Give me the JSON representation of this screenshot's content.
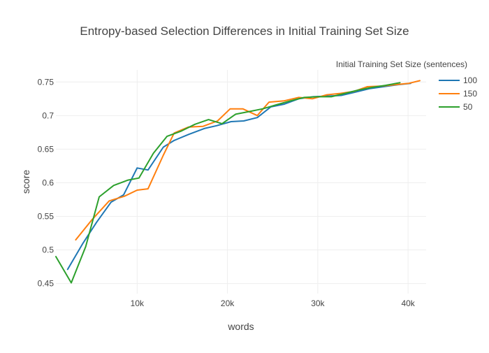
{
  "chart_data": {
    "type": "line",
    "title": "Entropy-based Selection Differences in Initial Training Set Size",
    "xlabel": "words",
    "ylabel": "score",
    "xlim": [
      1000,
      42000
    ],
    "ylim": [
      0.435,
      0.768
    ],
    "x_ticks": [
      10000,
      20000,
      30000,
      40000
    ],
    "x_tick_labels": [
      "10k",
      "20k",
      "30k",
      "40k"
    ],
    "y_ticks": [
      0.45,
      0.5,
      0.55,
      0.6,
      0.65,
      0.7,
      0.75
    ],
    "y_tick_labels": [
      "0.45",
      "0.5",
      "0.55",
      "0.6",
      "0.65",
      "0.7",
      "0.75"
    ],
    "grid": true,
    "legend": {
      "title": "Initial Training Set Size (sentences)",
      "position": "top-right"
    },
    "series": [
      {
        "name": "100",
        "color": "#1f77b4",
        "x": [
          2300,
          4000,
          5500,
          7100,
          8500,
          10000,
          11200,
          12900,
          14100,
          15700,
          17500,
          18800,
          20400,
          21800,
          23300,
          24800,
          26300,
          27900,
          29500,
          31100,
          32600,
          34200,
          35700,
          37300,
          38900,
          40300
        ],
        "y": [
          0.471,
          0.51,
          0.541,
          0.571,
          0.582,
          0.622,
          0.619,
          0.653,
          0.663,
          0.672,
          0.681,
          0.685,
          0.691,
          0.692,
          0.697,
          0.713,
          0.717,
          0.725,
          0.728,
          0.729,
          0.73,
          0.735,
          0.74,
          0.743,
          0.746,
          0.748
        ]
      },
      {
        "name": "150",
        "color": "#ff7f0e",
        "x": [
          3200,
          5000,
          6900,
          8600,
          10000,
          11200,
          12900,
          14100,
          15700,
          17300,
          18900,
          20300,
          21700,
          23300,
          24600,
          26300,
          27900,
          29400,
          31000,
          32500,
          34000,
          35500,
          37100,
          38600,
          40100,
          41300
        ],
        "y": [
          0.515,
          0.545,
          0.573,
          0.58,
          0.589,
          0.591,
          0.641,
          0.674,
          0.683,
          0.684,
          0.692,
          0.71,
          0.71,
          0.7,
          0.72,
          0.722,
          0.727,
          0.725,
          0.731,
          0.733,
          0.736,
          0.743,
          0.744,
          0.746,
          0.748,
          0.752
        ]
      },
      {
        "name": "50",
        "color": "#2ca02c",
        "x": [
          1000,
          2700,
          4300,
          5800,
          7400,
          9000,
          10200,
          11800,
          13300,
          14900,
          16400,
          17900,
          19400,
          20900,
          22400,
          23900,
          25400,
          27000,
          28500,
          30000,
          31500,
          33000,
          34500,
          36000,
          37500,
          39100
        ],
        "y": [
          0.49,
          0.451,
          0.505,
          0.579,
          0.596,
          0.604,
          0.607,
          0.644,
          0.669,
          0.677,
          0.687,
          0.694,
          0.688,
          0.702,
          0.706,
          0.71,
          0.716,
          0.722,
          0.727,
          0.728,
          0.728,
          0.733,
          0.738,
          0.742,
          0.745,
          0.749
        ]
      }
    ]
  }
}
